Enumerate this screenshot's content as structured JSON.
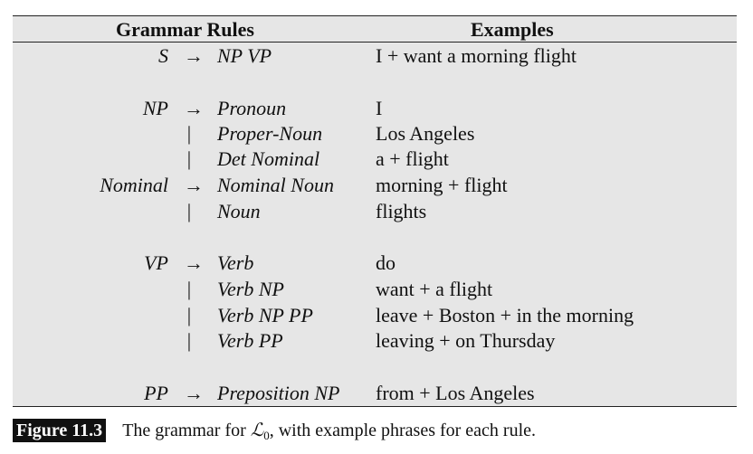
{
  "table": {
    "headers": {
      "rules": "Grammar Rules",
      "examples": "Examples"
    },
    "rows": [
      {
        "lhs": "S",
        "op": "→",
        "rhs": "NP VP",
        "example": "I + want a morning flight"
      },
      {
        "lhs": "NP",
        "op": "→",
        "rhs": "Pronoun",
        "example": "I"
      },
      {
        "lhs": "",
        "op": "|",
        "rhs": "Proper-Noun",
        "example": "Los Angeles"
      },
      {
        "lhs": "",
        "op": "|",
        "rhs": "Det Nominal",
        "example": "a + flight"
      },
      {
        "lhs": "Nominal",
        "op": "→",
        "rhs": "Nominal Noun",
        "example": "morning + flight"
      },
      {
        "lhs": "",
        "op": "|",
        "rhs": "Noun",
        "example": "flights"
      },
      {
        "lhs": "VP",
        "op": "→",
        "rhs": "Verb",
        "example": "do"
      },
      {
        "lhs": "",
        "op": "|",
        "rhs": "Verb NP",
        "example": "want + a flight"
      },
      {
        "lhs": "",
        "op": "|",
        "rhs": "Verb NP PP",
        "example": "leave + Boston + in the morning"
      },
      {
        "lhs": "",
        "op": "|",
        "rhs": "Verb PP",
        "example": "leaving + on Thursday"
      },
      {
        "lhs": "PP",
        "op": "→",
        "rhs": "Preposition NP",
        "example": "from + Los Angeles"
      }
    ]
  },
  "caption": {
    "label": "Figure 11.3",
    "text_before": "The grammar for ",
    "symbol": "ℒ",
    "subscript": "0",
    "text_after": ", with example phrases for each rule."
  }
}
